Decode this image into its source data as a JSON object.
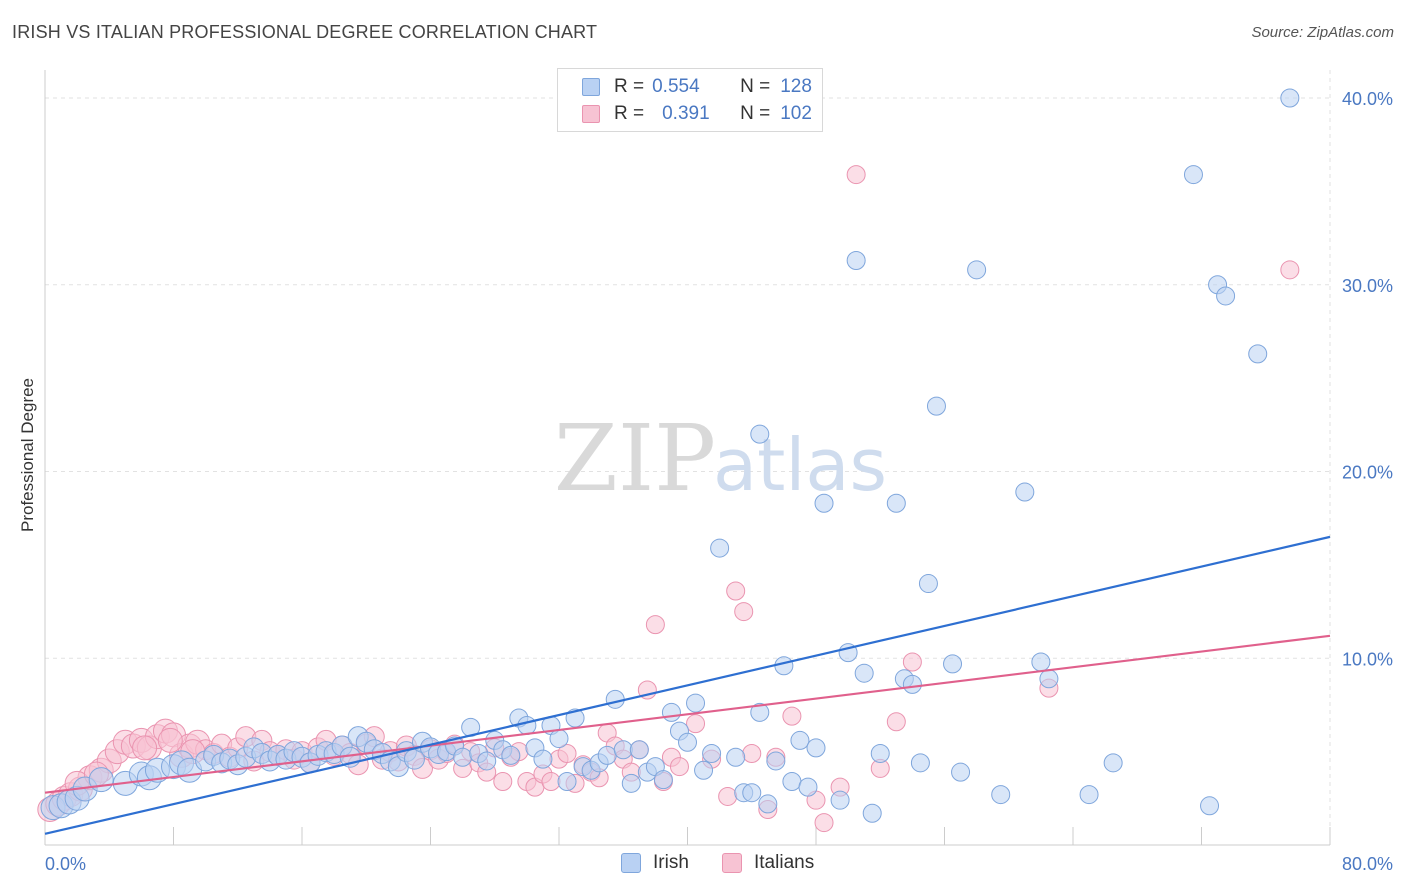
{
  "title": "IRISH VS ITALIAN PROFESSIONAL DEGREE CORRELATION CHART",
  "source": "Source: ZipAtlas.com",
  "watermark": {
    "zip": "ZIP",
    "atlas": "atlas"
  },
  "colors": {
    "irish_fill": "#b9d1f3",
    "irish_stroke": "#7fa6dc",
    "irish_line": "#2e6fd1",
    "italians_fill": "#f7c3d3",
    "italians_stroke": "#ea94b0",
    "italians_line": "#e0608c",
    "accent_text": "#4a78c2",
    "grid": "#e2e2e2"
  },
  "legend": {
    "rows": [
      {
        "r_label": "R =",
        "r_value": "0.554",
        "n_label": "N =",
        "n_value": "128"
      },
      {
        "r_label": "R =",
        "r_value": "0.391",
        "n_label": "N =",
        "n_value": "102"
      }
    ]
  },
  "chart_data": {
    "type": "scatter",
    "title": "IRISH VS ITALIAN PROFESSIONAL DEGREE CORRELATION CHART",
    "xlabel": "",
    "ylabel": "Professional Degree",
    "xlim": [
      0,
      80
    ],
    "ylim": [
      0,
      41.5
    ],
    "x_tick_labels": [
      "0.0%",
      "80.0%"
    ],
    "y_ticks": [
      10,
      20,
      30,
      40
    ],
    "y_tick_labels": [
      "10.0%",
      "20.0%",
      "30.0%",
      "40.0%"
    ],
    "grid": true,
    "series": [
      {
        "name": "Irish",
        "r": 0.554,
        "n": 128,
        "trend": {
          "x": [
            0,
            80
          ],
          "y": [
            0.6,
            16.5
          ]
        },
        "points": [
          [
            0.5,
            2.0
          ],
          [
            1.0,
            2.1
          ],
          [
            1.5,
            2.3
          ],
          [
            2.0,
            2.5
          ],
          [
            2.5,
            3.0
          ],
          [
            3.5,
            3.5
          ],
          [
            5.0,
            3.3
          ],
          [
            6.0,
            3.8
          ],
          [
            6.5,
            3.6
          ],
          [
            7.0,
            4.0
          ],
          [
            8.0,
            4.2
          ],
          [
            8.5,
            4.4
          ],
          [
            9.0,
            4.0
          ],
          [
            10.0,
            4.5
          ],
          [
            10.5,
            4.8
          ],
          [
            11.0,
            4.4
          ],
          [
            11.5,
            4.6
          ],
          [
            12.0,
            4.3
          ],
          [
            12.5,
            4.7
          ],
          [
            13.0,
            5.2
          ],
          [
            13.5,
            4.9
          ],
          [
            14.0,
            4.5
          ],
          [
            14.5,
            4.8
          ],
          [
            15.0,
            4.6
          ],
          [
            15.5,
            5.0
          ],
          [
            16.0,
            4.7
          ],
          [
            16.5,
            4.4
          ],
          [
            17.0,
            4.8
          ],
          [
            17.5,
            5.0
          ],
          [
            18.0,
            4.9
          ],
          [
            18.5,
            5.3
          ],
          [
            19.0,
            4.7
          ],
          [
            19.5,
            5.8
          ],
          [
            20.0,
            5.5
          ],
          [
            20.5,
            5.1
          ],
          [
            21.0,
            4.9
          ],
          [
            21.5,
            4.5
          ],
          [
            22.0,
            4.2
          ],
          [
            22.5,
            5.0
          ],
          [
            23.0,
            4.6
          ],
          [
            23.5,
            5.5
          ],
          [
            24.0,
            5.2
          ],
          [
            24.5,
            4.9
          ],
          [
            25.0,
            5.0
          ],
          [
            25.5,
            5.3
          ],
          [
            26.0,
            4.7
          ],
          [
            26.5,
            6.3
          ],
          [
            27.0,
            4.9
          ],
          [
            27.5,
            4.5
          ],
          [
            28.0,
            5.6
          ],
          [
            28.5,
            5.1
          ],
          [
            29.0,
            4.8
          ],
          [
            29.5,
            6.8
          ],
          [
            30.0,
            6.4
          ],
          [
            30.5,
            5.2
          ],
          [
            31.0,
            4.6
          ],
          [
            31.5,
            6.4
          ],
          [
            32.0,
            5.7
          ],
          [
            32.5,
            3.4
          ],
          [
            33.0,
            6.8
          ],
          [
            33.5,
            4.2
          ],
          [
            34.0,
            4.0
          ],
          [
            34.5,
            4.4
          ],
          [
            35.0,
            4.8
          ],
          [
            35.5,
            7.8
          ],
          [
            36.0,
            5.1
          ],
          [
            36.5,
            3.3
          ],
          [
            37.0,
            5.1
          ],
          [
            37.5,
            3.9
          ],
          [
            38.0,
            4.2
          ],
          [
            38.5,
            3.5
          ],
          [
            39.0,
            7.1
          ],
          [
            39.5,
            6.1
          ],
          [
            40.0,
            5.5
          ],
          [
            40.5,
            7.6
          ],
          [
            41.0,
            4.0
          ],
          [
            41.5,
            4.9
          ],
          [
            42.0,
            15.9
          ],
          [
            43.0,
            4.7
          ],
          [
            43.5,
            2.8
          ],
          [
            44.0,
            2.8
          ],
          [
            44.5,
            7.1
          ],
          [
            45.0,
            2.2
          ],
          [
            45.5,
            4.5
          ],
          [
            46.0,
            9.6
          ],
          [
            46.5,
            3.4
          ],
          [
            47.0,
            5.6
          ],
          [
            47.5,
            3.1
          ],
          [
            48.0,
            5.2
          ],
          [
            48.5,
            18.3
          ],
          [
            49.5,
            2.4
          ],
          [
            50.5,
            31.3
          ],
          [
            50.0,
            10.3
          ],
          [
            51.0,
            9.2
          ],
          [
            51.5,
            1.7
          ],
          [
            52.0,
            4.9
          ],
          [
            53.0,
            18.3
          ],
          [
            53.5,
            8.9
          ],
          [
            54.0,
            8.6
          ],
          [
            54.5,
            4.4
          ],
          [
            55.0,
            14.0
          ],
          [
            55.5,
            23.5
          ],
          [
            56.5,
            9.7
          ],
          [
            57.0,
            3.9
          ],
          [
            58.0,
            30.8
          ],
          [
            59.5,
            2.7
          ],
          [
            61.0,
            18.9
          ],
          [
            62.0,
            9.8
          ],
          [
            62.5,
            8.9
          ],
          [
            65.0,
            2.7
          ],
          [
            66.5,
            4.4
          ],
          [
            71.5,
            35.9
          ],
          [
            72.5,
            2.1
          ],
          [
            73.0,
            30.0
          ],
          [
            73.5,
            29.4
          ],
          [
            75.5,
            26.3
          ],
          [
            77.5,
            40.0
          ],
          [
            44.5,
            22.0
          ]
        ]
      },
      {
        "name": "Italians",
        "r": 0.391,
        "n": 102,
        "trend": {
          "x": [
            0,
            80
          ],
          "y": [
            2.8,
            11.2
          ]
        },
        "points": [
          [
            0.3,
            1.9
          ],
          [
            0.8,
            2.2
          ],
          [
            1.2,
            2.5
          ],
          [
            1.6,
            2.7
          ],
          [
            2.2,
            3.0
          ],
          [
            2.8,
            3.6
          ],
          [
            3.5,
            4.0
          ],
          [
            4.0,
            4.5
          ],
          [
            4.5,
            5.0
          ],
          [
            5.0,
            5.5
          ],
          [
            5.5,
            5.3
          ],
          [
            6.0,
            5.6
          ],
          [
            6.5,
            5.2
          ],
          [
            7.0,
            5.8
          ],
          [
            7.5,
            6.1
          ],
          [
            8.0,
            5.9
          ],
          [
            8.5,
            4.8
          ],
          [
            9.0,
            5.3
          ],
          [
            9.5,
            5.5
          ],
          [
            10.0,
            5.1
          ],
          [
            10.5,
            4.9
          ],
          [
            11.0,
            5.4
          ],
          [
            11.5,
            4.7
          ],
          [
            12.0,
            5.2
          ],
          [
            12.5,
            5.8
          ],
          [
            13.0,
            4.5
          ],
          [
            13.5,
            5.6
          ],
          [
            14.0,
            5.0
          ],
          [
            14.5,
            4.8
          ],
          [
            15.0,
            5.1
          ],
          [
            15.5,
            4.6
          ],
          [
            16.0,
            5.0
          ],
          [
            16.5,
            4.4
          ],
          [
            17.0,
            5.2
          ],
          [
            17.5,
            5.6
          ],
          [
            18.0,
            4.8
          ],
          [
            18.5,
            5.3
          ],
          [
            19.0,
            4.9
          ],
          [
            19.5,
            4.3
          ],
          [
            20.0,
            5.4
          ],
          [
            20.5,
            5.8
          ],
          [
            21.0,
            4.6
          ],
          [
            21.5,
            5.0
          ],
          [
            22.0,
            4.5
          ],
          [
            22.5,
            5.3
          ],
          [
            23.0,
            4.8
          ],
          [
            23.5,
            4.1
          ],
          [
            24.0,
            5.1
          ],
          [
            24.5,
            4.6
          ],
          [
            25.0,
            4.9
          ],
          [
            25.5,
            5.4
          ],
          [
            26.0,
            4.1
          ],
          [
            26.5,
            5.0
          ],
          [
            27.0,
            4.4
          ],
          [
            27.5,
            3.9
          ],
          [
            28.0,
            5.2
          ],
          [
            28.5,
            3.4
          ],
          [
            29.0,
            4.7
          ],
          [
            29.5,
            5.0
          ],
          [
            30.0,
            3.4
          ],
          [
            30.5,
            3.1
          ],
          [
            31.0,
            3.8
          ],
          [
            31.5,
            3.4
          ],
          [
            32.0,
            4.6
          ],
          [
            32.5,
            4.9
          ],
          [
            33.0,
            3.3
          ],
          [
            33.5,
            4.3
          ],
          [
            34.0,
            3.9
          ],
          [
            34.5,
            3.6
          ],
          [
            35.0,
            6.0
          ],
          [
            35.5,
            5.3
          ],
          [
            36.0,
            4.6
          ],
          [
            36.5,
            3.9
          ],
          [
            37.0,
            5.1
          ],
          [
            37.5,
            8.3
          ],
          [
            38.0,
            11.8
          ],
          [
            38.5,
            3.4
          ],
          [
            39.0,
            4.7
          ],
          [
            39.5,
            4.2
          ],
          [
            40.5,
            6.5
          ],
          [
            41.5,
            4.6
          ],
          [
            42.5,
            2.6
          ],
          [
            43.0,
            13.6
          ],
          [
            43.5,
            12.5
          ],
          [
            44.0,
            4.9
          ],
          [
            45.0,
            1.9
          ],
          [
            45.5,
            4.7
          ],
          [
            46.5,
            6.9
          ],
          [
            48.0,
            2.4
          ],
          [
            48.5,
            1.2
          ],
          [
            49.5,
            3.1
          ],
          [
            50.5,
            35.9
          ],
          [
            52.0,
            4.1
          ],
          [
            53.0,
            6.6
          ],
          [
            54.0,
            9.8
          ],
          [
            62.5,
            8.4
          ],
          [
            77.5,
            30.8
          ],
          [
            2.0,
            3.3
          ],
          [
            6.2,
            5.2
          ],
          [
            9.2,
            5.0
          ],
          [
            3.2,
            3.8
          ],
          [
            7.8,
            5.6
          ]
        ]
      }
    ]
  },
  "bottom_legend": {
    "irish": "Irish",
    "italians": "Italians"
  }
}
